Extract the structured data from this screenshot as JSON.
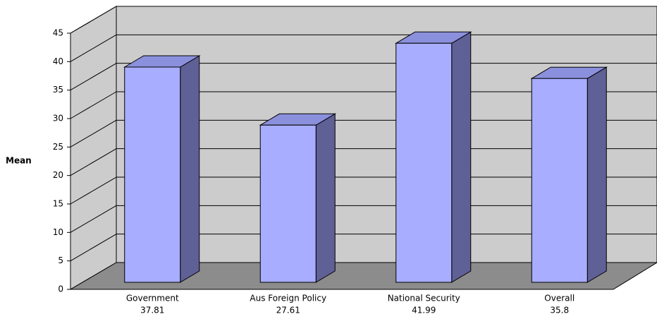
{
  "chart_data": {
    "type": "bar3d",
    "y_label": "Mean",
    "categories": [
      "Government",
      "Aus Foreign Policy",
      "National Security",
      "Overall"
    ],
    "values": [
      37.81,
      27.61,
      41.99,
      35.8
    ],
    "color": "#a8adff",
    "ylim": [
      0,
      45
    ],
    "yticks": [
      0,
      5,
      10,
      15,
      20,
      25,
      30,
      35,
      40,
      45
    ],
    "grid": true
  }
}
